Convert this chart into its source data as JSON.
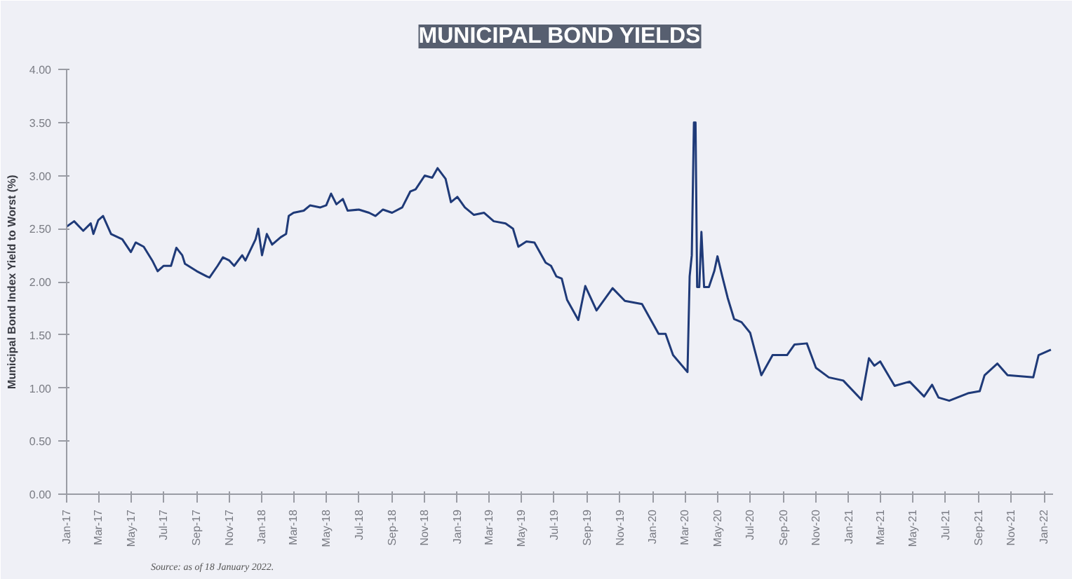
{
  "chart_data": {
    "type": "line",
    "title": "MUNICIPAL BOND YIELDS",
    "ylabel": "Municipal Bond Index Yield to Worst (%)",
    "annotations": [
      "Source: as of 18 January 2022."
    ],
    "grid": false,
    "marker": "none",
    "line_style": "solid",
    "ylim": [
      0,
      4
    ],
    "yticks": [
      {
        "value": 0,
        "label": "0.00"
      },
      {
        "value": 0.5,
        "label": "0.50"
      },
      {
        "value": 1,
        "label": "1.00"
      },
      {
        "value": 1.5,
        "label": "1.50"
      },
      {
        "value": 2,
        "label": "2.00"
      },
      {
        "value": 2.5,
        "label": "2.50"
      },
      {
        "value": 3,
        "label": "3.00"
      },
      {
        "value": 3.5,
        "label": "3.50"
      },
      {
        "value": 4,
        "label": "4.00"
      }
    ],
    "xlim": [
      "2017-01-01",
      "2022-01-18"
    ],
    "xticks": [
      {
        "value": "2017-01-01",
        "label": "Jan-17"
      },
      {
        "value": "2017-03-01",
        "label": "Mar-17"
      },
      {
        "value": "2017-05-01",
        "label": "May-17"
      },
      {
        "value": "2017-07-01",
        "label": "Jul-17"
      },
      {
        "value": "2017-09-01",
        "label": "Sep-17"
      },
      {
        "value": "2017-11-01",
        "label": "Nov-17"
      },
      {
        "value": "2018-01-01",
        "label": "Jan-18"
      },
      {
        "value": "2018-03-01",
        "label": "Mar-18"
      },
      {
        "value": "2018-05-01",
        "label": "May-18"
      },
      {
        "value": "2018-07-01",
        "label": "Jul-18"
      },
      {
        "value": "2018-09-01",
        "label": "Sep-18"
      },
      {
        "value": "2018-11-01",
        "label": "Nov-18"
      },
      {
        "value": "2019-01-01",
        "label": "Jan-19"
      },
      {
        "value": "2019-03-01",
        "label": "Mar-19"
      },
      {
        "value": "2019-05-01",
        "label": "May-19"
      },
      {
        "value": "2019-07-01",
        "label": "Jul-19"
      },
      {
        "value": "2019-09-01",
        "label": "Sep-19"
      },
      {
        "value": "2019-11-01",
        "label": "Nov-19"
      },
      {
        "value": "2020-01-01",
        "label": "Jan-20"
      },
      {
        "value": "2020-03-01",
        "label": "Mar-20"
      },
      {
        "value": "2020-05-01",
        "label": "May-20"
      },
      {
        "value": "2020-07-01",
        "label": "Jul-20"
      },
      {
        "value": "2020-09-01",
        "label": "Sep-20"
      },
      {
        "value": "2020-11-01",
        "label": "Nov-20"
      },
      {
        "value": "2021-01-01",
        "label": "Jan-21"
      },
      {
        "value": "2021-03-01",
        "label": "Mar-21"
      },
      {
        "value": "2021-05-01",
        "label": "May-21"
      },
      {
        "value": "2021-07-01",
        "label": "Jul-21"
      },
      {
        "value": "2021-09-01",
        "label": "Sep-21"
      },
      {
        "value": "2021-11-01",
        "label": "Nov-21"
      },
      {
        "value": "2022-01-01",
        "label": "Jan-22"
      }
    ],
    "series": [
      {
        "color": "#1f3a78",
        "x": [
          "2017-01-01",
          "2017-01-15",
          "2017-02-01",
          "2017-02-15",
          "2017-02-20",
          "2017-03-01",
          "2017-03-10",
          "2017-03-25",
          "2017-04-15",
          "2017-05-01",
          "2017-05-10",
          "2017-05-25",
          "2017-06-10",
          "2017-06-20",
          "2017-07-01",
          "2017-07-15",
          "2017-07-25",
          "2017-08-05",
          "2017-08-10",
          "2017-09-01",
          "2017-09-20",
          "2017-09-25",
          "2017-10-10",
          "2017-10-20",
          "2017-11-01",
          "2017-11-10",
          "2017-11-25",
          "2017-12-01",
          "2017-12-20",
          "2017-12-25",
          "2018-01-01",
          "2018-01-10",
          "2018-01-20",
          "2018-02-05",
          "2018-02-15",
          "2018-02-20",
          "2018-03-01",
          "2018-03-20",
          "2018-04-01",
          "2018-04-20",
          "2018-05-01",
          "2018-05-10",
          "2018-05-20",
          "2018-06-01",
          "2018-06-10",
          "2018-07-01",
          "2018-07-20",
          "2018-08-01",
          "2018-08-15",
          "2018-09-01",
          "2018-09-20",
          "2018-10-05",
          "2018-10-15",
          "2018-11-01",
          "2018-11-15",
          "2018-11-25",
          "2018-12-10",
          "2018-12-20",
          "2019-01-01",
          "2019-01-15",
          "2019-02-01",
          "2019-02-20",
          "2019-03-10",
          "2019-04-01",
          "2019-04-15",
          "2019-04-25",
          "2019-05-10",
          "2019-05-25",
          "2019-06-15",
          "2019-06-25",
          "2019-07-05",
          "2019-07-15",
          "2019-07-25",
          "2019-08-15",
          "2019-08-28",
          "2019-09-18",
          "2019-10-18",
          "2019-11-10",
          "2019-12-12",
          "2020-01-12",
          "2020-01-25",
          "2020-02-08",
          "2020-03-06",
          "2020-03-10",
          "2020-03-14",
          "2020-03-18",
          "2020-03-21",
          "2020-03-24",
          "2020-03-28",
          "2020-04-01",
          "2020-04-06",
          "2020-04-15",
          "2020-04-25",
          "2020-05-01",
          "2020-05-10",
          "2020-05-20",
          "2020-06-01",
          "2020-06-15",
          "2020-07-01",
          "2020-07-22",
          "2020-08-12",
          "2020-09-08",
          "2020-09-22",
          "2020-10-15",
          "2020-11-01",
          "2020-11-25",
          "2020-12-22",
          "2021-01-25",
          "2021-02-08",
          "2021-02-18",
          "2021-03-01",
          "2021-03-28",
          "2021-04-25",
          "2021-05-22",
          "2021-06-06",
          "2021-06-18",
          "2021-07-08",
          "2021-08-12",
          "2021-09-03",
          "2021-09-12",
          "2021-10-06",
          "2021-10-25",
          "2021-12-12",
          "2021-12-22",
          "2022-01-14"
        ],
        "values": [
          2.52,
          2.57,
          2.48,
          2.55,
          2.45,
          2.58,
          2.62,
          2.45,
          2.4,
          2.28,
          2.37,
          2.33,
          2.2,
          2.1,
          2.15,
          2.15,
          2.32,
          2.25,
          2.17,
          2.1,
          2.05,
          2.04,
          2.15,
          2.23,
          2.2,
          2.15,
          2.25,
          2.2,
          2.4,
          2.5,
          2.25,
          2.45,
          2.35,
          2.42,
          2.45,
          2.62,
          2.65,
          2.67,
          2.72,
          2.7,
          2.72,
          2.83,
          2.73,
          2.78,
          2.67,
          2.68,
          2.65,
          2.62,
          2.68,
          2.65,
          2.7,
          2.85,
          2.87,
          3.0,
          2.98,
          3.07,
          2.97,
          2.75,
          2.8,
          2.7,
          2.63,
          2.65,
          2.57,
          2.55,
          2.5,
          2.33,
          2.38,
          2.37,
          2.18,
          2.15,
          2.05,
          2.03,
          1.83,
          1.64,
          1.96,
          1.73,
          1.94,
          1.82,
          1.79,
          1.51,
          1.51,
          1.31,
          1.15,
          2.05,
          2.25,
          3.5,
          3.5,
          1.95,
          1.95,
          2.47,
          1.95,
          1.95,
          2.1,
          2.24,
          2.05,
          1.85,
          1.65,
          1.62,
          1.52,
          1.12,
          1.31,
          1.31,
          1.41,
          1.42,
          1.19,
          1.1,
          1.07,
          0.89,
          1.28,
          1.21,
          1.25,
          1.02,
          1.06,
          0.92,
          1.03,
          0.91,
          0.88,
          0.95,
          0.97,
          1.12,
          1.23,
          1.12,
          1.1,
          1.31,
          1.36
        ]
      }
    ]
  }
}
